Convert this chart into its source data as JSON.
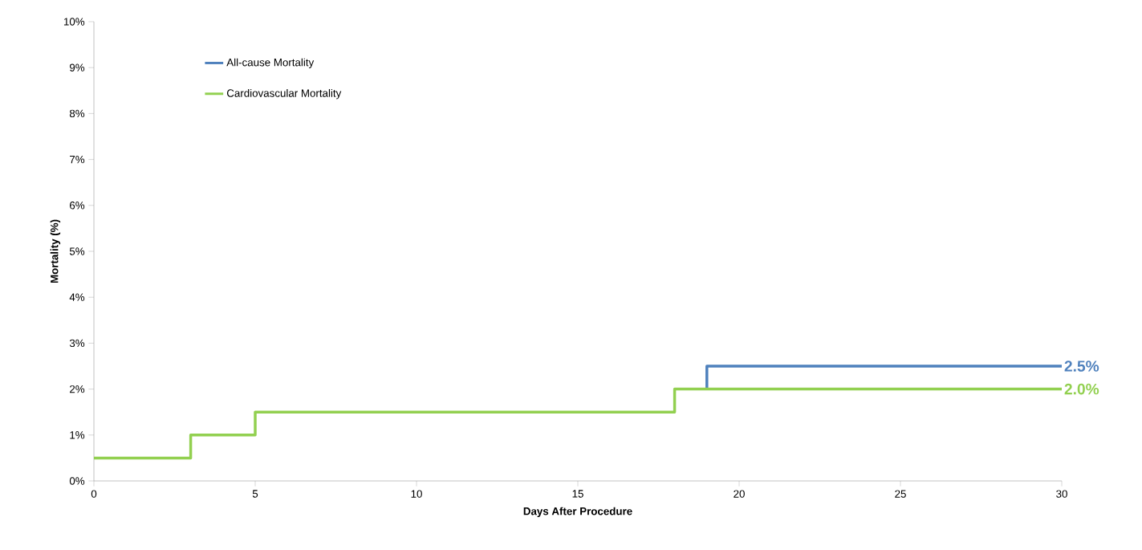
{
  "chart_data": {
    "type": "step",
    "xlabel": "Days After Procedure",
    "ylabel": "Mortality (%)",
    "series": [
      {
        "name": "All-cause Mortality",
        "color": "#4f81bd",
        "x": [
          19,
          19,
          30
        ],
        "values": [
          2.0,
          2.5,
          2.5
        ]
      },
      {
        "name": "Cardiovascular Mortality",
        "color": "#92d050",
        "x": [
          0,
          3,
          5,
          18,
          30
        ],
        "values": [
          0.5,
          1.0,
          1.5,
          2.0,
          2.0
        ]
      }
    ],
    "xlim": [
      0,
      30
    ],
    "xticks": [
      0,
      5,
      10,
      15,
      20,
      25,
      30
    ],
    "ylim": [
      0,
      10
    ],
    "yticks": [
      {
        "value": 0,
        "label": "0%"
      },
      {
        "value": 1,
        "label": "1%"
      },
      {
        "value": 2,
        "label": "2%"
      },
      {
        "value": 3,
        "label": "3%"
      },
      {
        "value": 4,
        "label": "4%"
      },
      {
        "value": 5,
        "label": "5%"
      },
      {
        "value": 6,
        "label": "6%"
      },
      {
        "value": 7,
        "label": "7%"
      },
      {
        "value": 8,
        "label": "8%"
      },
      {
        "value": 9,
        "label": "9%"
      },
      {
        "value": 10,
        "label": "10%"
      }
    ],
    "annotations": [
      {
        "text": "2.5%",
        "x": 30,
        "y": 2.5
      },
      {
        "text": "2.0%",
        "x": 30,
        "y": 2.0
      }
    ],
    "legend": "top left",
    "grid": false,
    "marker": "none",
    "line_style": "solid"
  }
}
